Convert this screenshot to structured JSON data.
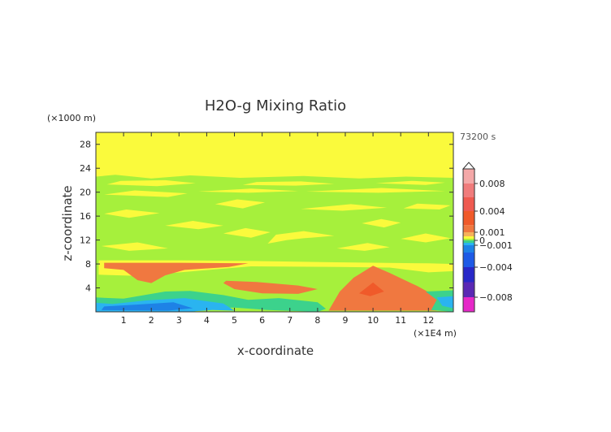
{
  "chart_data": {
    "type": "heatmap",
    "title": "H2O-g Mixing Ratio",
    "xlabel": "x-coordinate",
    "ylabel": "z-coordinate",
    "x_unit": "(×1E4 m)",
    "y_unit": "(×1000 m)",
    "time_label": "73200 s",
    "xlim": [
      0,
      12.9
    ],
    "ylim": [
      0,
      30
    ],
    "x_ticks": [
      1,
      2,
      3,
      4,
      5,
      6,
      7,
      8,
      9,
      10,
      11,
      12
    ],
    "y_ticks": [
      4,
      8,
      12,
      16,
      20,
      24,
      28
    ],
    "colorbar": {
      "tick_labels": [
        {
          "value": 0.008,
          "label": "0.008"
        },
        {
          "value": 0.004,
          "label": "0.004"
        },
        {
          "value": 0.001,
          "label": "0.001"
        },
        {
          "value": 0,
          "label": "0"
        },
        {
          "value": -0.001,
          "label": "−0.001"
        },
        {
          "value": -0.004,
          "label": "−0.004"
        },
        {
          "value": -0.008,
          "label": "−0.008"
        }
      ],
      "levels": [
        {
          "lo": 0.008,
          "hi": 0.01,
          "color": "#f4a8a8"
        },
        {
          "lo": 0.006,
          "hi": 0.008,
          "color": "#f07c7c"
        },
        {
          "lo": 0.004,
          "hi": 0.006,
          "color": "#ef5a50"
        },
        {
          "lo": 0.002,
          "hi": 0.004,
          "color": "#f05a2a"
        },
        {
          "lo": 0.001,
          "hi": 0.002,
          "color": "#f07840"
        },
        {
          "lo": 0.0005,
          "hi": 0.001,
          "color": "#f5b15a"
        },
        {
          "lo": 0.0002,
          "hi": 0.0005,
          "color": "#fafa3c"
        },
        {
          "lo": 0,
          "hi": 0.0002,
          "color": "#a6f03c"
        },
        {
          "lo": -0.0005,
          "hi": 0,
          "color": "#3cd28c"
        },
        {
          "lo": -0.001,
          "hi": -0.0005,
          "color": "#2ab4f0"
        },
        {
          "lo": -0.002,
          "hi": -0.001,
          "color": "#1e82e6"
        },
        {
          "lo": -0.004,
          "hi": -0.002,
          "color": "#1e5ae6"
        },
        {
          "lo": -0.006,
          "hi": -0.004,
          "color": "#2828c8"
        },
        {
          "lo": -0.008,
          "hi": -0.006,
          "color": "#5a28b4"
        },
        {
          "lo": -0.01,
          "hi": -0.008,
          "color": "#e628c8"
        }
      ]
    },
    "regions": [
      {
        "level": "yellow",
        "points": [
          [
            0,
            19
          ],
          [
            12.9,
            19
          ],
          [
            12.9,
            30
          ],
          [
            0,
            30
          ]
        ]
      },
      {
        "level": "green",
        "points": [
          [
            0,
            0
          ],
          [
            12.9,
            0
          ],
          [
            12.9,
            22.4
          ],
          [
            11.2,
            22.6
          ],
          [
            9.5,
            22.3
          ],
          [
            7.5,
            22.7
          ],
          [
            5.2,
            22.4
          ],
          [
            3.4,
            22.8
          ],
          [
            2,
            22.3
          ],
          [
            0.7,
            22.9
          ],
          [
            0,
            22.6
          ]
        ]
      },
      {
        "level": "yellow",
        "points": [
          [
            0.4,
            21.3
          ],
          [
            2.2,
            21
          ],
          [
            3.6,
            21.5
          ],
          [
            2.5,
            22
          ],
          [
            0.9,
            21.9
          ]
        ]
      },
      {
        "level": "yellow",
        "points": [
          [
            5.3,
            21.2
          ],
          [
            7.2,
            21.1
          ],
          [
            8.6,
            21.4
          ],
          [
            7.4,
            21.8
          ],
          [
            5.8,
            21.7
          ]
        ]
      },
      {
        "level": "yellow",
        "points": [
          [
            10.1,
            21.5
          ],
          [
            11.9,
            21.2
          ],
          [
            12.6,
            21.6
          ],
          [
            11.4,
            21.9
          ]
        ]
      },
      {
        "level": "yellow",
        "points": [
          [
            3.7,
            20.1
          ],
          [
            5.5,
            19.9
          ],
          [
            7.3,
            20.2
          ],
          [
            5.6,
            20.6
          ]
        ]
      },
      {
        "level": "yellow",
        "points": [
          [
            7.6,
            20.1
          ],
          [
            10.2,
            19.9
          ],
          [
            12.6,
            20.2
          ],
          [
            10.3,
            20.7
          ]
        ]
      },
      {
        "level": "yellow",
        "points": [
          [
            0.3,
            19.6
          ],
          [
            2.6,
            19.2
          ],
          [
            3.3,
            19.8
          ],
          [
            1.4,
            20.3
          ]
        ]
      },
      {
        "level": "yellow",
        "points": [
          [
            4.3,
            18
          ],
          [
            5.3,
            17.3
          ],
          [
            6.1,
            18.3
          ],
          [
            5.1,
            18.8
          ]
        ]
      },
      {
        "level": "yellow",
        "points": [
          [
            7.4,
            17.2
          ],
          [
            8.9,
            16.9
          ],
          [
            10.5,
            17.4
          ],
          [
            9.2,
            18
          ]
        ]
      },
      {
        "level": "yellow",
        "points": [
          [
            11.1,
            17.3
          ],
          [
            12.4,
            17.1
          ],
          [
            12.8,
            17.8
          ],
          [
            11.6,
            18.1
          ]
        ]
      },
      {
        "level": "yellow",
        "points": [
          [
            0.3,
            16.4
          ],
          [
            1.2,
            15.7
          ],
          [
            2.3,
            16.5
          ],
          [
            1.1,
            17.1
          ]
        ]
      },
      {
        "level": "yellow",
        "points": [
          [
            2.5,
            14.4
          ],
          [
            3.7,
            13.8
          ],
          [
            4.6,
            14.4
          ],
          [
            3.5,
            15.2
          ]
        ]
      },
      {
        "level": "yellow",
        "points": [
          [
            4.6,
            13.1
          ],
          [
            5.6,
            12.4
          ],
          [
            6.3,
            13.3
          ],
          [
            5.4,
            14
          ]
        ]
      },
      {
        "level": "yellow",
        "points": [
          [
            6.2,
            11.4
          ],
          [
            6.9,
            12
          ],
          [
            7.5,
            12.3
          ],
          [
            8.6,
            12.7
          ],
          [
            7.5,
            13.5
          ],
          [
            6.5,
            12.9
          ]
        ]
      },
      {
        "level": "yellow",
        "points": [
          [
            9.6,
            14.8
          ],
          [
            10.4,
            14.1
          ],
          [
            11,
            14.9
          ],
          [
            10.3,
            15.5
          ]
        ]
      },
      {
        "level": "yellow",
        "points": [
          [
            11,
            12.2
          ],
          [
            11.9,
            11.6
          ],
          [
            12.8,
            12.3
          ],
          [
            11.9,
            13.1
          ]
        ]
      },
      {
        "level": "yellow",
        "points": [
          [
            0.2,
            11
          ],
          [
            1.2,
            10.2
          ],
          [
            2.6,
            10.6
          ],
          [
            1.5,
            11.6
          ]
        ]
      },
      {
        "level": "yellow",
        "points": [
          [
            8.7,
            10.6
          ],
          [
            9.7,
            10.2
          ],
          [
            10.6,
            10.8
          ],
          [
            9.8,
            11.5
          ]
        ]
      },
      {
        "level": "yellow",
        "points": [
          [
            0.1,
            8.6
          ],
          [
            3,
            8.6
          ],
          [
            5.6,
            8.5
          ],
          [
            8.4,
            8.3
          ],
          [
            12,
            8.1
          ],
          [
            12.9,
            8
          ],
          [
            12.9,
            6.8
          ],
          [
            12,
            6.6
          ],
          [
            10.6,
            7.4
          ],
          [
            8.8,
            7.5
          ],
          [
            5.6,
            7.6
          ],
          [
            3.3,
            6.7
          ],
          [
            1.5,
            6
          ],
          [
            0.1,
            6.2
          ]
        ]
      },
      {
        "level": "orange",
        "points": [
          [
            0.3,
            8.2
          ],
          [
            3,
            8.2
          ],
          [
            5.5,
            8.1
          ],
          [
            4.8,
            7.5
          ],
          [
            3.2,
            7
          ],
          [
            2.5,
            6.1
          ],
          [
            2,
            4.8
          ],
          [
            1.5,
            5.3
          ],
          [
            1,
            7
          ],
          [
            0.3,
            7.3
          ]
        ]
      },
      {
        "level": "orange",
        "points": [
          [
            4.7,
            5.2
          ],
          [
            5.8,
            5
          ],
          [
            7.3,
            4.4
          ],
          [
            8,
            3.8
          ],
          [
            7.3,
            3
          ],
          [
            6,
            3.1
          ],
          [
            5,
            3.8
          ],
          [
            4.6,
            4.8
          ]
        ]
      },
      {
        "level": "orange",
        "points": [
          [
            8.4,
            0.2
          ],
          [
            8.8,
            3.4
          ],
          [
            9.3,
            5.7
          ],
          [
            10,
            7.7
          ],
          [
            10.6,
            6.5
          ],
          [
            11.6,
            4.3
          ],
          [
            12,
            3.3
          ],
          [
            12.4,
            1.8
          ],
          [
            12.3,
            0.2
          ]
        ]
      },
      {
        "level": "red",
        "points": [
          [
            9.5,
            3.1
          ],
          [
            10,
            4.9
          ],
          [
            10.4,
            3.4
          ],
          [
            9.9,
            2.6
          ]
        ]
      },
      {
        "level": "teal",
        "points": [
          [
            0,
            0
          ],
          [
            3.5,
            0
          ],
          [
            4,
            0.6
          ],
          [
            5,
            0.7
          ],
          [
            6.2,
            0.3
          ],
          [
            8,
            0
          ],
          [
            8.3,
            0.5
          ],
          [
            8,
            1.6
          ],
          [
            6.6,
            2.3
          ],
          [
            5.5,
            2
          ],
          [
            4.6,
            2.8
          ],
          [
            3.4,
            3.5
          ],
          [
            2.5,
            3.4
          ],
          [
            1,
            2.2
          ],
          [
            0,
            2.4
          ]
        ]
      },
      {
        "level": "lightblue",
        "points": [
          [
            0,
            0
          ],
          [
            3.2,
            0
          ],
          [
            4.2,
            0.3
          ],
          [
            5,
            0.2
          ],
          [
            4.6,
            1.4
          ],
          [
            3.2,
            2.3
          ],
          [
            1.8,
            1.9
          ],
          [
            0.6,
            1.3
          ],
          [
            0,
            1.5
          ]
        ]
      },
      {
        "level": "blue",
        "points": [
          [
            0.2,
            0.3
          ],
          [
            2.6,
            0.2
          ],
          [
            3.5,
            0.6
          ],
          [
            2.8,
            1.6
          ],
          [
            1.4,
            1.2
          ],
          [
            0.3,
            0.9
          ]
        ]
      },
      {
        "level": "teal",
        "points": [
          [
            11.9,
            3.4
          ],
          [
            12.9,
            3.6
          ],
          [
            12.9,
            0
          ],
          [
            12.1,
            0.3
          ],
          [
            12.3,
            2
          ]
        ]
      },
      {
        "level": "lightblue",
        "points": [
          [
            12.3,
            2.4
          ],
          [
            12.9,
            2.6
          ],
          [
            12.9,
            0.6
          ],
          [
            12.5,
            1
          ]
        ]
      }
    ]
  }
}
